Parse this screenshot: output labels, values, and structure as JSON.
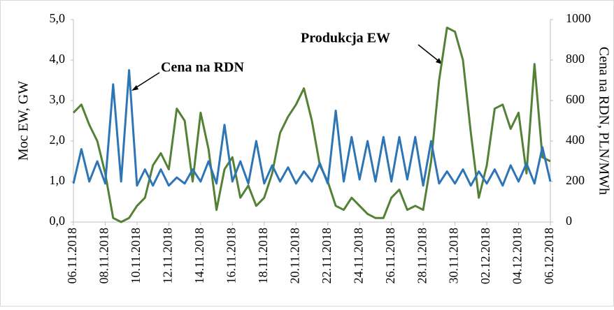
{
  "chart_data": {
    "type": "line",
    "y_label": "Moc EW, GW",
    "y2_label": "Cena na RDN, PLN/MWh",
    "categories": [
      "06.11.2018",
      null,
      null,
      null,
      "08.11.2018",
      null,
      null,
      null,
      "10.11.2018",
      null,
      null,
      null,
      "12.11.2018",
      null,
      null,
      null,
      "14.11.2018",
      null,
      null,
      null,
      "16.11.2018",
      null,
      null,
      null,
      "18.11.2018",
      null,
      null,
      null,
      "20.11.2018",
      null,
      null,
      null,
      "22.11.2018",
      null,
      null,
      null,
      "24.11.2018",
      null,
      null,
      null,
      "26.11.2018",
      null,
      null,
      null,
      "28.11.2018",
      null,
      null,
      null,
      "30.11.2018",
      null,
      null,
      null,
      "02.12.2018",
      null,
      null,
      null,
      "04.12.2018",
      null,
      null,
      null,
      "06.12.2018"
    ],
    "series": [
      {
        "name": "Produkcja EW",
        "color": "#538135",
        "axis": "y",
        "values": [
          2.7,
          2.9,
          2.4,
          2.0,
          1.2,
          0.1,
          0.0,
          0.1,
          0.4,
          0.6,
          1.4,
          1.7,
          1.3,
          2.8,
          2.5,
          1.0,
          2.7,
          1.8,
          0.3,
          1.3,
          1.6,
          0.6,
          0.9,
          0.4,
          0.6,
          1.2,
          2.2,
          2.6,
          2.9,
          3.3,
          2.5,
          1.4,
          1.0,
          0.4,
          0.3,
          0.6,
          0.4,
          0.2,
          0.1,
          0.1,
          0.6,
          0.8,
          0.3,
          0.4,
          0.3,
          1.5,
          3.5,
          4.8,
          4.7,
          4.0,
          2.2,
          0.6,
          1.4,
          2.8,
          2.9,
          2.3,
          2.7,
          1.2,
          3.9,
          1.6,
          1.5
        ]
      },
      {
        "name": "Cena na RDN",
        "color": "#2e75b6",
        "axis": "y2",
        "values": [
          190,
          360,
          200,
          300,
          190,
          680,
          200,
          750,
          180,
          260,
          180,
          260,
          180,
          220,
          190,
          260,
          200,
          300,
          190,
          480,
          200,
          300,
          190,
          400,
          190,
          280,
          200,
          270,
          190,
          250,
          200,
          290,
          190,
          550,
          200,
          420,
          210,
          400,
          200,
          420,
          200,
          420,
          210,
          420,
          180,
          400,
          190,
          250,
          190,
          260,
          180,
          250,
          190,
          260,
          180,
          280,
          200,
          290,
          190,
          370,
          200
        ]
      }
    ],
    "ylim": [
      0,
      5
    ],
    "yticks": [
      {
        "value": 0,
        "label": "0,0"
      },
      {
        "value": 1,
        "label": "1,0"
      },
      {
        "value": 2,
        "label": "2,0"
      },
      {
        "value": 3,
        "label": "3,0"
      },
      {
        "value": 4,
        "label": "4,0"
      },
      {
        "value": 5,
        "label": "5,0"
      }
    ],
    "y2lim": [
      0,
      1000
    ],
    "y2ticks": [
      0,
      200,
      400,
      600,
      800,
      1000
    ],
    "grid": false
  }
}
